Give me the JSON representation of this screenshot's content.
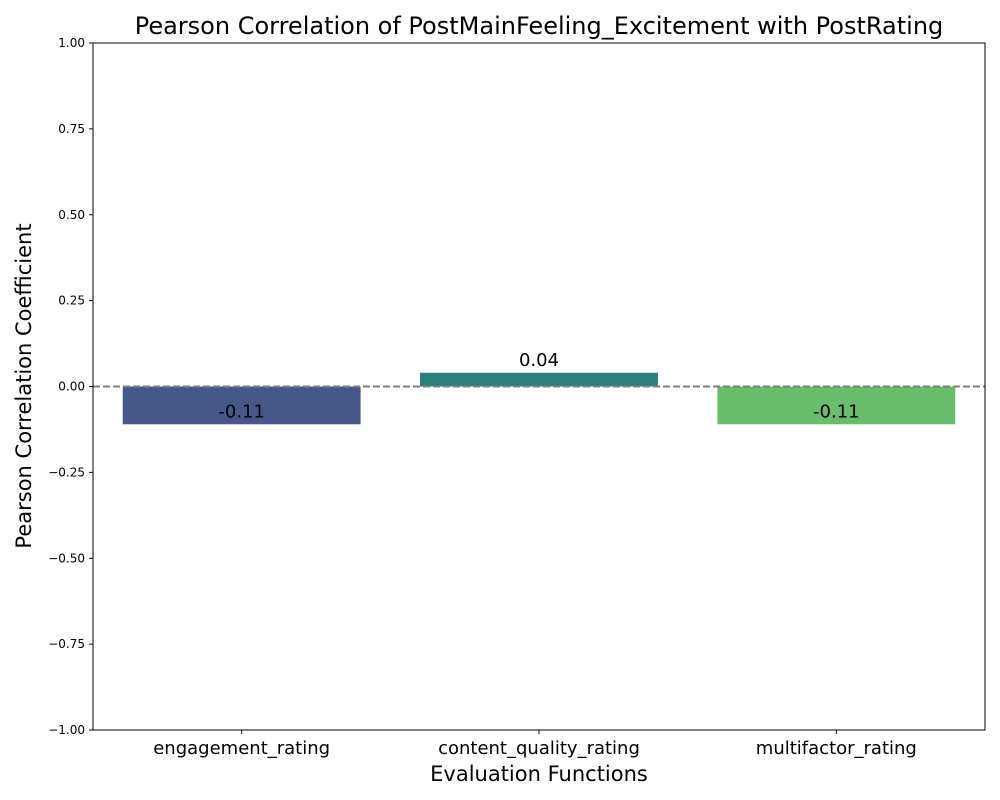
{
  "chart_data": {
    "type": "bar",
    "title": "Pearson Correlation of PostMainFeeling_Excitement with PostRating",
    "xlabel": "Evaluation Functions",
    "ylabel": "Pearson Correlation Coefficient",
    "ylim": [
      -1.0,
      1.0
    ],
    "yticks": [
      -1.0,
      -0.75,
      -0.5,
      -0.25,
      0.0,
      0.25,
      0.5,
      0.75,
      1.0
    ],
    "ytick_labels": [
      "−1.00",
      "−0.75",
      "−0.50",
      "−0.25",
      "0.00",
      "0.25",
      "0.50",
      "0.75",
      "1.00"
    ],
    "categories": [
      "engagement_rating",
      "content_quality_rating",
      "multifactor_rating"
    ],
    "values": [
      -0.11,
      0.04,
      -0.11
    ],
    "value_labels": [
      "-0.11",
      "0.04",
      "-0.11"
    ],
    "colors": [
      "#46578a",
      "#2a7f7a",
      "#6abd6a"
    ],
    "reference_line": {
      "y": 0.0,
      "style": "dashed",
      "color": "#808080"
    },
    "grid": false,
    "legend": "none"
  }
}
